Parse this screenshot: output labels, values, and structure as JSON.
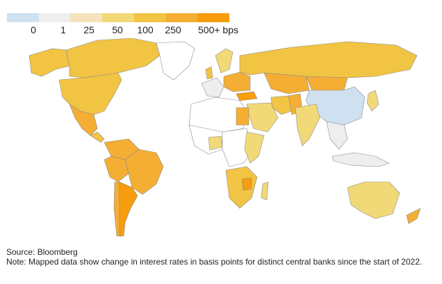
{
  "legend": {
    "colors": [
      "#cfe0f1",
      "#eeeeee",
      "#f5e3bd",
      "#f2d978",
      "#f2c443",
      "#f4ae34",
      "#f79d0e"
    ],
    "labels": [
      "0",
      "1",
      "25",
      "50",
      "100",
      "250",
      "500+ bps"
    ]
  },
  "footer": {
    "source": "Source: Bloomberg",
    "note": "Note: Mapped data show change in interest rates in basis points for distinct central banks since the start of 2022."
  },
  "map_colors": {
    "no_data": "#ffffff",
    "zero": "#cfe0f1",
    "one": "#eeeeee",
    "c25": "#f5e3bd",
    "c50": "#f2d978",
    "c100": "#f2c443",
    "c250": "#f4ae34",
    "c500": "#f79d0e",
    "border": "#8a8a8a"
  }
}
